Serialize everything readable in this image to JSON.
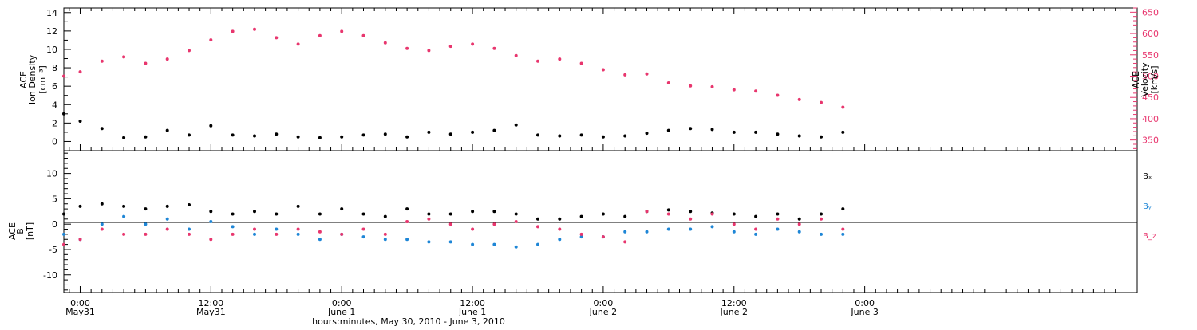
{
  "colors": {
    "black": "#000000",
    "pink": "#e8366e",
    "blue": "#1e86d6"
  },
  "labels": {
    "top_left": [
      "ACE",
      "Ion Density",
      "[cm⁻³]"
    ],
    "top_right": [
      "ACE",
      "Velocity",
      "[km/s]"
    ],
    "bottom_left": [
      "ACE",
      "B",
      "[nT]"
    ],
    "legend": [
      "Bₓ",
      "Bᵧ",
      "B_z"
    ],
    "xlabel": "hours:minutes, May 30, 2010 - June  3, 2010"
  },
  "chart_data": [
    {
      "type": "scatter",
      "title": "",
      "x_range_hours": [
        -1.5,
        97
      ],
      "x_ticks": [
        {
          "hour": 0,
          "time": "0:00",
          "date": "May31"
        },
        {
          "hour": 12,
          "time": "12:00",
          "date": "May31"
        },
        {
          "hour": 24,
          "time": "0:00",
          "date": "June 1"
        },
        {
          "hour": 36,
          "time": "12:00",
          "date": "June 1"
        },
        {
          "hour": 48,
          "time": "0:00",
          "date": "June 2"
        },
        {
          "hour": 60,
          "time": "12:00",
          "date": "June 2"
        },
        {
          "hour": 72,
          "time": "0:00",
          "date": "June 3"
        }
      ],
      "ylim_left": [
        -1,
        14.5
      ],
      "yticks_left": [
        0,
        2,
        4,
        6,
        8,
        10,
        12,
        14
      ],
      "ylim_right": [
        325,
        660
      ],
      "yticks_right": [
        350,
        400,
        450,
        500,
        550,
        600,
        650
      ],
      "ylabel_left": "ACE Ion Density [cm⁻³]",
      "ylabel_right": "ACE Velocity [km/s]",
      "series": [
        {
          "name": "Ion Density",
          "axis": "left",
          "color": "#000000",
          "points": [
            [
              -1.5,
              3
            ],
            [
              0,
              2.2
            ],
            [
              2,
              1.4
            ],
            [
              4,
              0.4
            ],
            [
              6,
              0.5
            ],
            [
              8,
              1.2
            ],
            [
              10,
              0.7
            ],
            [
              12,
              1.7
            ],
            [
              14,
              0.7
            ],
            [
              16,
              0.6
            ],
            [
              18,
              0.8
            ],
            [
              20,
              0.5
            ],
            [
              22,
              0.4
            ],
            [
              24,
              0.5
            ],
            [
              26,
              0.7
            ],
            [
              28,
              0.8
            ],
            [
              30,
              0.5
            ],
            [
              32,
              1
            ],
            [
              34,
              0.8
            ],
            [
              36,
              1
            ],
            [
              38,
              1.2
            ],
            [
              40,
              1.8
            ],
            [
              42,
              0.7
            ],
            [
              44,
              0.6
            ],
            [
              46,
              0.7
            ],
            [
              48,
              0.5
            ],
            [
              50,
              0.6
            ],
            [
              52,
              0.9
            ],
            [
              54,
              1.2
            ],
            [
              56,
              1.4
            ],
            [
              58,
              1.3
            ],
            [
              60,
              1
            ],
            [
              62,
              1
            ],
            [
              64,
              0.8
            ],
            [
              66,
              0.6
            ],
            [
              68,
              0.5
            ],
            [
              70,
              1
            ]
          ]
        },
        {
          "name": "Velocity",
          "axis": "right",
          "color": "#e8366e",
          "points": [
            [
              -1.5,
              500
            ],
            [
              0,
              510
            ],
            [
              2,
              535
            ],
            [
              4,
              545
            ],
            [
              6,
              530
            ],
            [
              8,
              540
            ],
            [
              10,
              560
            ],
            [
              12,
              585
            ],
            [
              14,
              605
            ],
            [
              16,
              610
            ],
            [
              18,
              590
            ],
            [
              20,
              575
            ],
            [
              22,
              595
            ],
            [
              24,
              605
            ],
            [
              26,
              595
            ],
            [
              28,
              578
            ],
            [
              30,
              565
            ],
            [
              32,
              560
            ],
            [
              34,
              570
            ],
            [
              36,
              575
            ],
            [
              38,
              565
            ],
            [
              40,
              548
            ],
            [
              42,
              535
            ],
            [
              44,
              540
            ],
            [
              46,
              530
            ],
            [
              48,
              515
            ],
            [
              50,
              503
            ],
            [
              52,
              505
            ],
            [
              54,
              484
            ],
            [
              56,
              477
            ],
            [
              58,
              475
            ],
            [
              60,
              468
            ],
            [
              62,
              465
            ],
            [
              64,
              455
            ],
            [
              66,
              445
            ],
            [
              68,
              438
            ],
            [
              70,
              427
            ]
          ]
        }
      ]
    },
    {
      "type": "scatter",
      "title": "",
      "x_range_hours": [
        -1.5,
        97
      ],
      "ylim": [
        -13.5,
        14.5
      ],
      "yticks": [
        -10,
        -5,
        0,
        5,
        10
      ],
      "ylabel": "ACE B [nT]",
      "series": [
        {
          "name": "Bₓ",
          "color": "#000000",
          "points": [
            [
              -1.5,
              2
            ],
            [
              0,
              3.5
            ],
            [
              2,
              4
            ],
            [
              4,
              3.5
            ],
            [
              6,
              3
            ],
            [
              8,
              3.5
            ],
            [
              10,
              3.8
            ],
            [
              12,
              2.5
            ],
            [
              14,
              2
            ],
            [
              16,
              2.5
            ],
            [
              18,
              2
            ],
            [
              20,
              3.5
            ],
            [
              22,
              2
            ],
            [
              24,
              3
            ],
            [
              26,
              2
            ],
            [
              28,
              1.5
            ],
            [
              30,
              3
            ],
            [
              32,
              2
            ],
            [
              34,
              2
            ],
            [
              36,
              2.5
            ],
            [
              38,
              2.5
            ],
            [
              40,
              2
            ],
            [
              42,
              1
            ],
            [
              44,
              1
            ],
            [
              46,
              1.5
            ],
            [
              48,
              2
            ],
            [
              50,
              1.5
            ],
            [
              52,
              2.5
            ],
            [
              54,
              2.8
            ],
            [
              56,
              2.5
            ],
            [
              58,
              2.2
            ],
            [
              60,
              2
            ],
            [
              62,
              1.5
            ],
            [
              64,
              2
            ],
            [
              66,
              1
            ],
            [
              68,
              2
            ],
            [
              70,
              3
            ]
          ]
        },
        {
          "name": "Bᵧ",
          "color": "#1e86d6",
          "points": [
            [
              -1.5,
              -2
            ],
            [
              0,
              -3
            ],
            [
              2,
              0
            ],
            [
              4,
              1.5
            ],
            [
              6,
              0
            ],
            [
              8,
              1
            ],
            [
              10,
              -1
            ],
            [
              12,
              0.5
            ],
            [
              14,
              -0.5
            ],
            [
              16,
              -2
            ],
            [
              18,
              -1
            ],
            [
              20,
              -2
            ],
            [
              22,
              -3
            ],
            [
              24,
              -2
            ],
            [
              26,
              -2.5
            ],
            [
              28,
              -3
            ],
            [
              30,
              -3
            ],
            [
              32,
              -3.5
            ],
            [
              34,
              -3.5
            ],
            [
              36,
              -4
            ],
            [
              38,
              -4
            ],
            [
              40,
              -4.5
            ],
            [
              42,
              -4
            ],
            [
              44,
              -3
            ],
            [
              46,
              -2.5
            ],
            [
              48,
              -2.5
            ],
            [
              50,
              -1.5
            ],
            [
              52,
              -1.5
            ],
            [
              54,
              -1
            ],
            [
              56,
              -1
            ],
            [
              58,
              -0.5
            ],
            [
              60,
              -1.5
            ],
            [
              62,
              -2
            ],
            [
              64,
              -1
            ],
            [
              66,
              -1.5
            ],
            [
              68,
              -2
            ],
            [
              70,
              -2
            ]
          ]
        },
        {
          "name": "B_z",
          "color": "#e8366e",
          "points": [
            [
              -1.5,
              -4
            ],
            [
              0,
              -3
            ],
            [
              2,
              -1
            ],
            [
              4,
              -2
            ],
            [
              6,
              -2
            ],
            [
              8,
              -1
            ],
            [
              10,
              -2
            ],
            [
              12,
              -3
            ],
            [
              14,
              -2
            ],
            [
              16,
              -1
            ],
            [
              18,
              -2
            ],
            [
              20,
              -1
            ],
            [
              22,
              -1.5
            ],
            [
              24,
              -2
            ],
            [
              26,
              -1
            ],
            [
              28,
              -2
            ],
            [
              30,
              0.5
            ],
            [
              32,
              1
            ],
            [
              34,
              0
            ],
            [
              36,
              -1
            ],
            [
              38,
              0
            ],
            [
              40,
              0.5
            ],
            [
              42,
              -0.5
            ],
            [
              44,
              -1
            ],
            [
              46,
              -2
            ],
            [
              48,
              -2.5
            ],
            [
              50,
              -3.5
            ],
            [
              52,
              2.5
            ],
            [
              54,
              2
            ],
            [
              56,
              1
            ],
            [
              58,
              2
            ],
            [
              60,
              0
            ],
            [
              62,
              -1
            ],
            [
              64,
              1
            ],
            [
              66,
              0
            ],
            [
              68,
              1
            ],
            [
              70,
              -1
            ]
          ]
        }
      ]
    }
  ]
}
